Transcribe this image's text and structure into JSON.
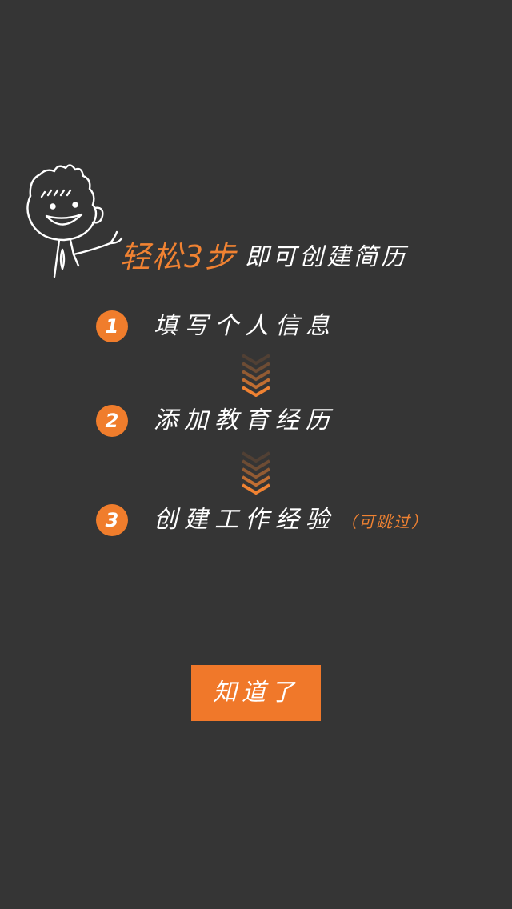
{
  "colors": {
    "background": "#353535",
    "accent": "#f08232",
    "text": "#ffffff"
  },
  "intro": {
    "headline_accent": "轻松3步",
    "headline_rest": "即可创建简历"
  },
  "steps": [
    {
      "number": "1",
      "text": "填写个人信息",
      "note": ""
    },
    {
      "number": "2",
      "text": "添加教育经历",
      "note": ""
    },
    {
      "number": "3",
      "text": "创建工作经验",
      "note": "（可跳过）"
    }
  ],
  "icons": {
    "character": "waving-cartoon-boy-icon",
    "arrow": "chevron-down-icon"
  },
  "actions": {
    "confirm_label": "知道了"
  }
}
